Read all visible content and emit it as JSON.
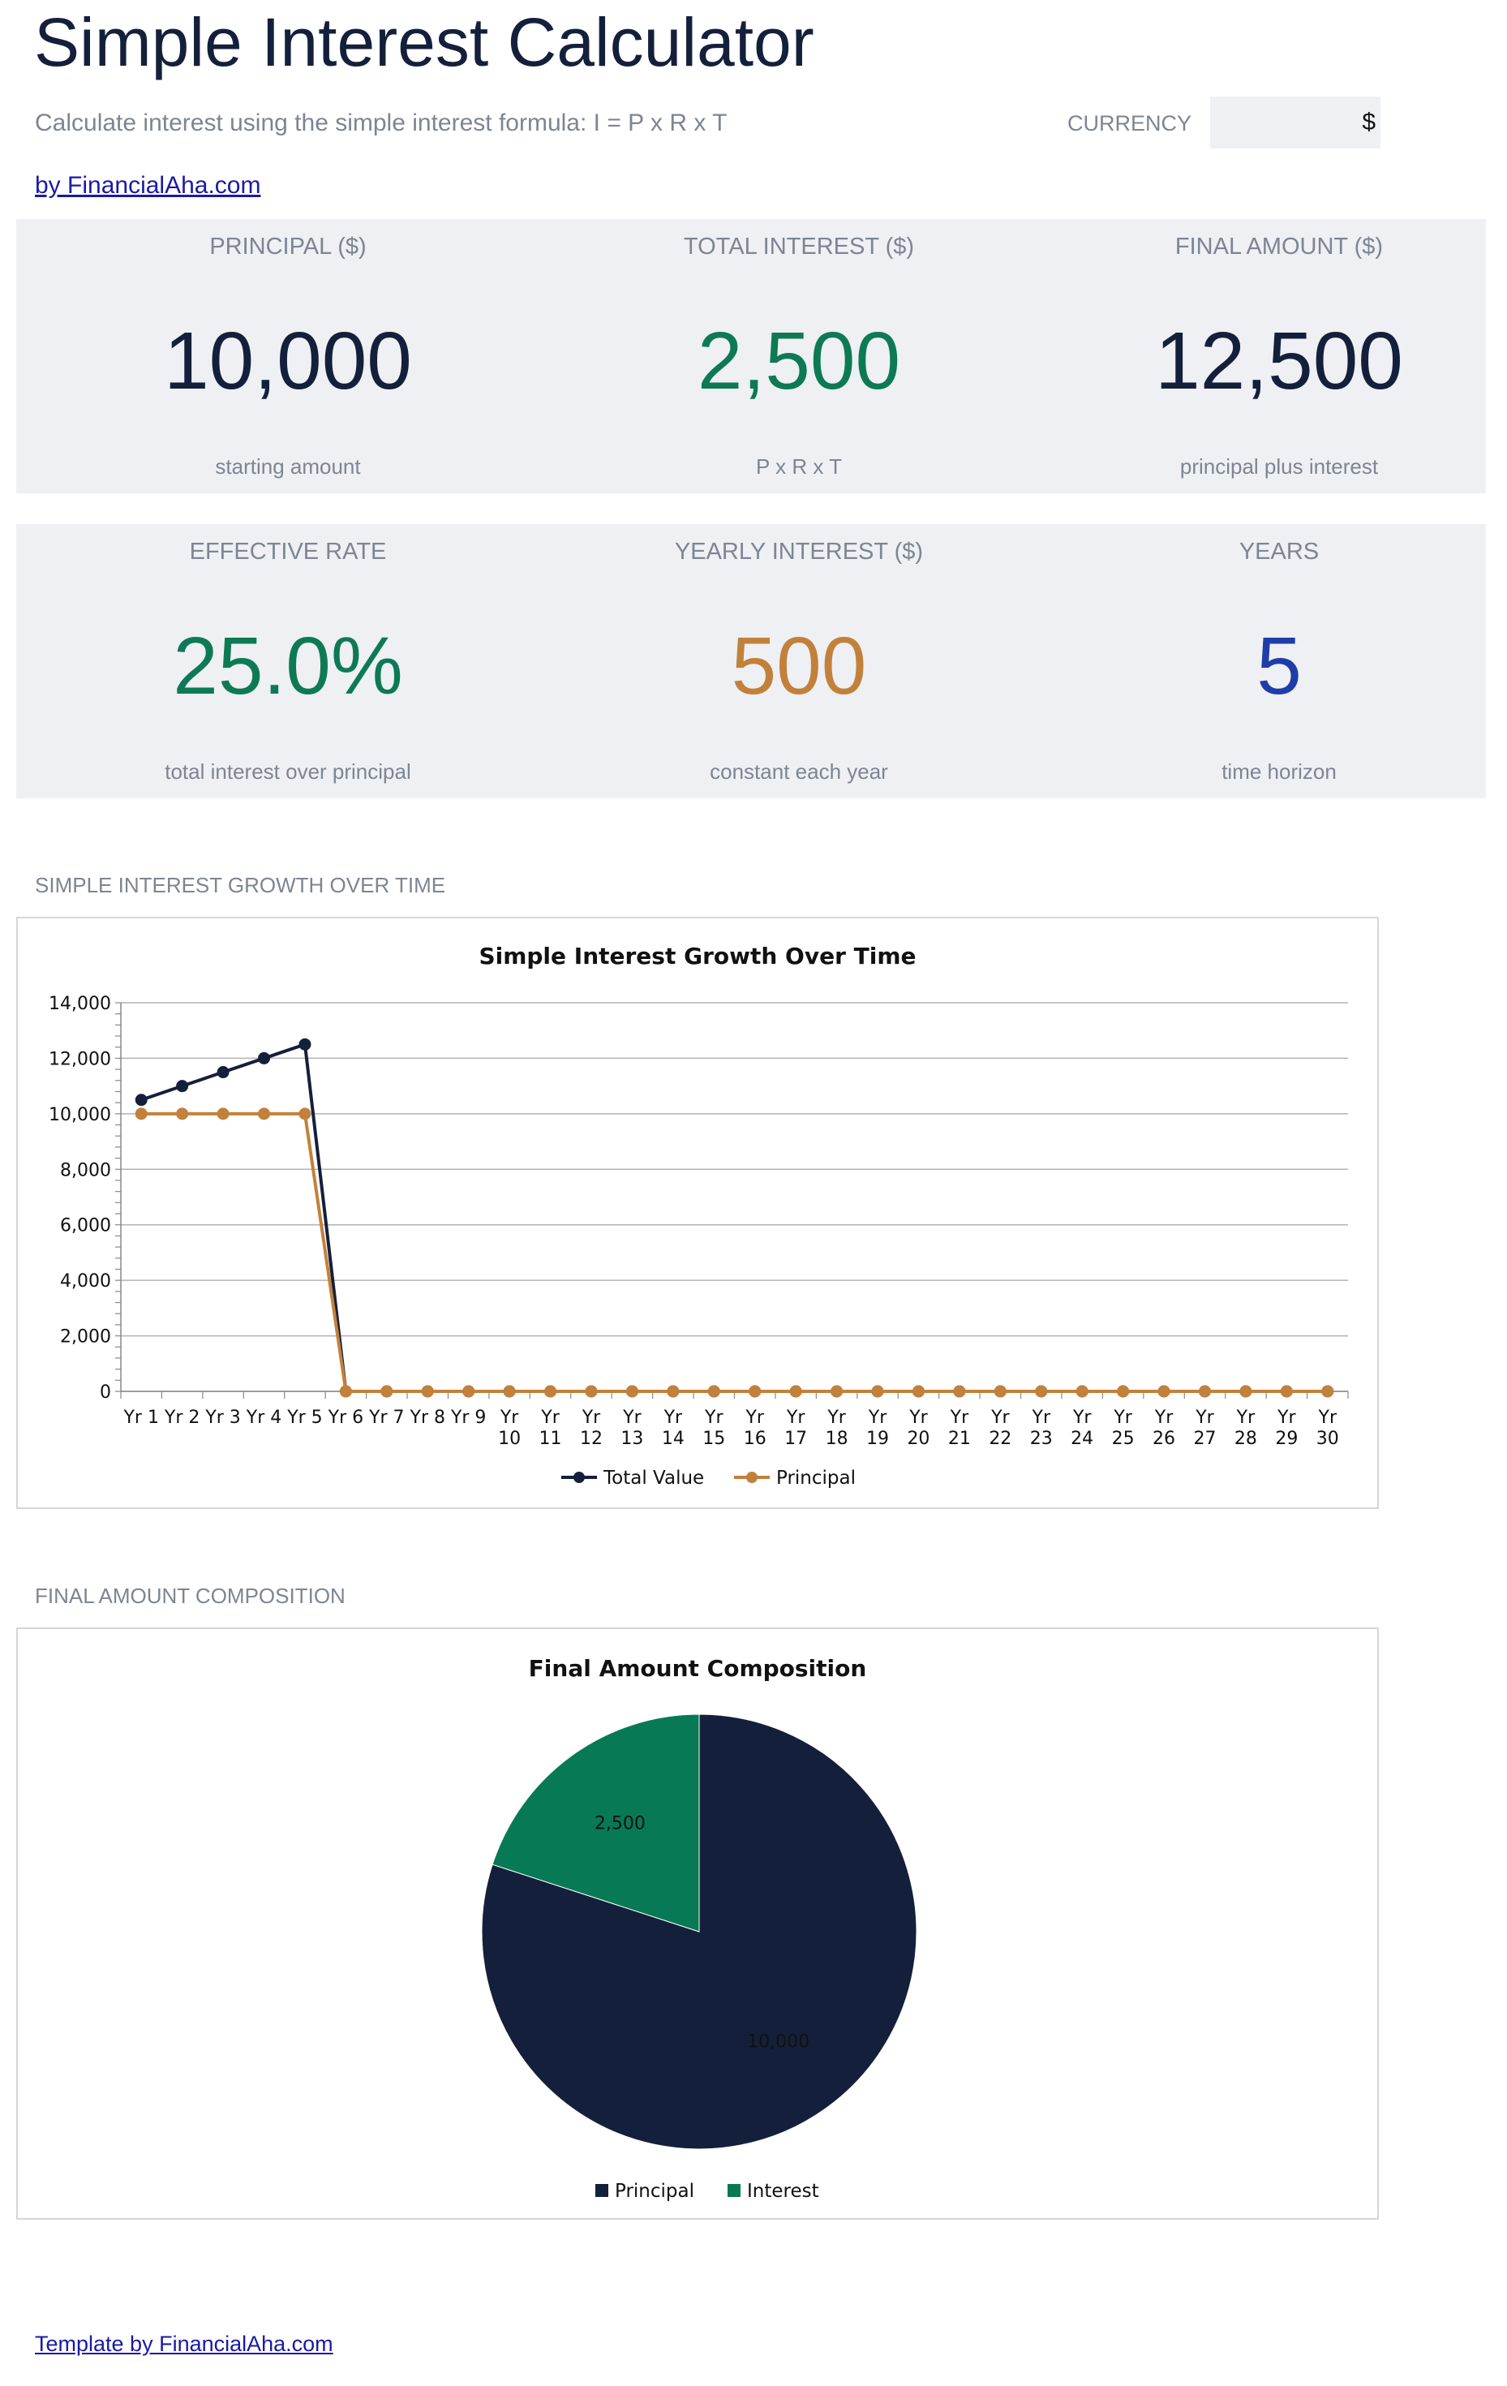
{
  "header": {
    "title": "Simple Interest Calculator",
    "subtitle": "Calculate interest using the simple interest formula: I = P x R x T",
    "currency_label": "CURRENCY",
    "currency_value": "$",
    "byline": "by FinancialAha.com"
  },
  "cards_row1": [
    {
      "label": "PRINCIPAL ($)",
      "value": "10,000",
      "sub": "starting amount",
      "color": "#14203b"
    },
    {
      "label": "TOTAL INTEREST ($)",
      "value": "2,500",
      "sub": "P x R x T",
      "color": "#0d7a55"
    },
    {
      "label": "FINAL AMOUNT ($)",
      "value": "12,500",
      "sub": "principal plus interest",
      "color": "#14203b"
    }
  ],
  "cards_row2": [
    {
      "label": "EFFECTIVE RATE",
      "value": "25.0%",
      "sub": "total interest over principal",
      "color": "#0d7a55"
    },
    {
      "label": "YEARLY INTEREST ($)",
      "value": "500",
      "sub": "constant each year",
      "color": "#c2813b"
    },
    {
      "label": "YEARS",
      "value": "5",
      "sub": "time horizon",
      "color": "#1f3da8"
    }
  ],
  "sections": {
    "growth_label": "SIMPLE INTEREST GROWTH OVER TIME",
    "composition_label": "FINAL AMOUNT COMPOSITION"
  },
  "footer": {
    "link": "Template by FinancialAha.com"
  },
  "chart_data": [
    {
      "type": "line",
      "title": "Simple Interest Growth Over Time",
      "categories": [
        "Yr 1",
        "Yr 2",
        "Yr 3",
        "Yr 4",
        "Yr 5",
        "Yr 6",
        "Yr 7",
        "Yr 8",
        "Yr 9",
        "Yr 10",
        "Yr 11",
        "Yr 12",
        "Yr 13",
        "Yr 14",
        "Yr 15",
        "Yr 16",
        "Yr 17",
        "Yr 18",
        "Yr 19",
        "Yr 20",
        "Yr 21",
        "Yr 22",
        "Yr 23",
        "Yr 24",
        "Yr 25",
        "Yr 26",
        "Yr 27",
        "Yr 28",
        "Yr 29",
        "Yr 30"
      ],
      "series": [
        {
          "name": "Total Value",
          "color": "#14203b",
          "values": [
            10500,
            11000,
            11500,
            12000,
            12500,
            0,
            0,
            0,
            0,
            0,
            0,
            0,
            0,
            0,
            0,
            0,
            0,
            0,
            0,
            0,
            0,
            0,
            0,
            0,
            0,
            0,
            0,
            0,
            0,
            0
          ]
        },
        {
          "name": "Principal",
          "color": "#c2813b",
          "values": [
            10000,
            10000,
            10000,
            10000,
            10000,
            0,
            0,
            0,
            0,
            0,
            0,
            0,
            0,
            0,
            0,
            0,
            0,
            0,
            0,
            0,
            0,
            0,
            0,
            0,
            0,
            0,
            0,
            0,
            0,
            0
          ]
        }
      ],
      "yticks": [
        "0",
        "2,000",
        "4,000",
        "6,000",
        "8,000",
        "10,000",
        "12,000",
        "14,000"
      ],
      "ylim": [
        0,
        14000
      ],
      "grid": true,
      "legend": "bottom"
    },
    {
      "type": "pie",
      "title": "Final Amount Composition",
      "slices": [
        {
          "name": "Principal",
          "value": 10000,
          "label": "10,000",
          "color": "#14203b"
        },
        {
          "name": "Interest",
          "value": 2500,
          "label": "2,500",
          "color": "#077a55"
        }
      ],
      "legend": "bottom"
    }
  ]
}
